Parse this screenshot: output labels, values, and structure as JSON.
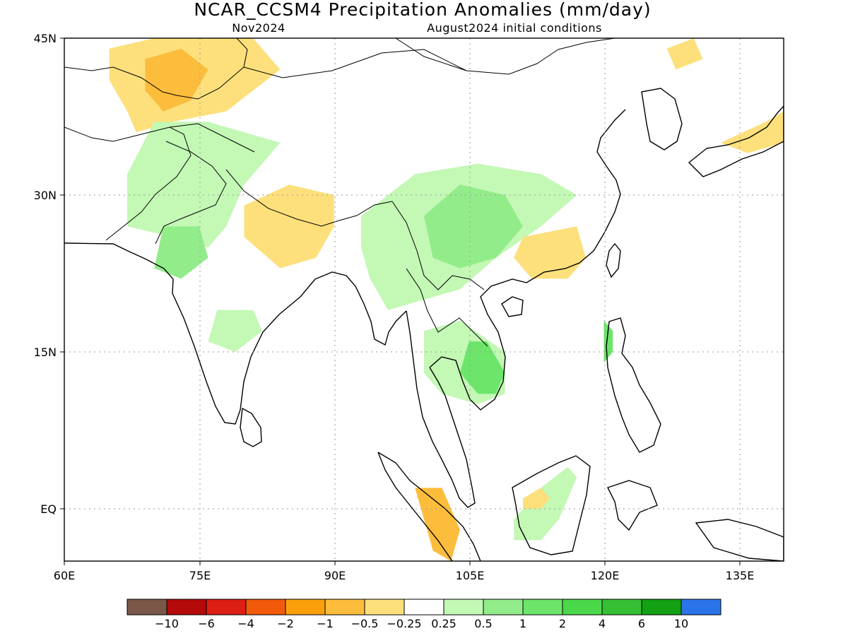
{
  "header": {
    "title": "NCAR_CCSM4 Precipitation Anomalies (mm/day)",
    "valid_month": "Nov2024",
    "init_label": "August2024 initial conditions"
  },
  "axes": {
    "lon_labels": [
      "60E",
      "75E",
      "90E",
      "105E",
      "120E",
      "135E"
    ],
    "lat_labels": [
      "45N",
      "30N",
      "15N",
      "EQ"
    ],
    "lon_range": [
      60,
      140
    ],
    "lat_range": [
      -5,
      45
    ],
    "gridlines": "dotted"
  },
  "colorbar": {
    "labels": [
      "−10",
      "−6",
      "−4",
      "−2",
      "−1",
      "−0.5",
      "−0.25",
      "0.25",
      "0.5",
      "1",
      "2",
      "4",
      "6",
      "10"
    ],
    "colors": [
      "#7a5748",
      "#b40a0a",
      "#dc1e14",
      "#f05a0a",
      "#fba00a",
      "#fcbd3c",
      "#fde07c",
      "#ffffff",
      "#c3f8b5",
      "#93ec8a",
      "#6ce56a",
      "#4ad84a",
      "#35bf35",
      "#13a013",
      "#2b73e8"
    ]
  },
  "anomaly_regions": [
    {
      "name": "dry Central Asia / Tajikistan",
      "lon_lat": [
        [
          65,
          44
        ],
        [
          70,
          45
        ],
        [
          81,
          45
        ],
        [
          84,
          42
        ],
        [
          78,
          38
        ],
        [
          72,
          37
        ],
        [
          68,
          36
        ],
        [
          67,
          38
        ],
        [
          65,
          41
        ]
      ],
      "color": "#fde07c"
    },
    {
      "name": "dry core Kyrgyzstan",
      "lon_lat": [
        [
          69,
          43
        ],
        [
          73,
          44
        ],
        [
          76,
          42
        ],
        [
          74,
          39
        ],
        [
          71,
          38
        ],
        [
          69,
          40
        ]
      ],
      "color": "#fcbd3c"
    },
    {
      "name": "wet Pakistan / NW India",
      "lon_lat": [
        [
          70,
          37
        ],
        [
          76,
          37
        ],
        [
          84,
          35
        ],
        [
          80,
          31
        ],
        [
          78,
          27
        ],
        [
          76,
          25
        ],
        [
          72,
          26
        ],
        [
          67,
          27
        ],
        [
          67,
          32
        ]
      ],
      "color": "#c3f8b5"
    },
    {
      "name": "wet central India",
      "lon_lat": [
        [
          71,
          27
        ],
        [
          75,
          27
        ],
        [
          76,
          24
        ],
        [
          73,
          22
        ],
        [
          70,
          23
        ]
      ],
      "color": "#93ec8a"
    },
    {
      "name": "dry Nepal / Ganges",
      "lon_lat": [
        [
          80,
          29
        ],
        [
          85,
          31
        ],
        [
          90,
          30
        ],
        [
          90,
          27
        ],
        [
          88,
          24
        ],
        [
          84,
          23
        ],
        [
          80,
          26
        ]
      ],
      "color": "#fde07c"
    },
    {
      "name": "wet east India",
      "lon_lat": [
        [
          77,
          19
        ],
        [
          81,
          19
        ],
        [
          82,
          17
        ],
        [
          79,
          15
        ],
        [
          76,
          16
        ]
      ],
      "color": "#c3f8b5"
    },
    {
      "name": "wet China / Myanmar / Laos",
      "lon_lat": [
        [
          93,
          28
        ],
        [
          99,
          32
        ],
        [
          106,
          33
        ],
        [
          113,
          32
        ],
        [
          117,
          30
        ],
        [
          113,
          27
        ],
        [
          108,
          24
        ],
        [
          104,
          21
        ],
        [
          100,
          20
        ],
        [
          96,
          19
        ],
        [
          94,
          22
        ],
        [
          93,
          25
        ]
      ],
      "color": "#c3f8b5"
    },
    {
      "name": "wet core Yunnan / Sichuan",
      "lon_lat": [
        [
          100,
          28
        ],
        [
          104,
          31
        ],
        [
          109,
          30
        ],
        [
          111,
          27
        ],
        [
          108,
          24
        ],
        [
          104,
          23
        ],
        [
          101,
          24
        ]
      ],
      "color": "#93ec8a"
    },
    {
      "name": "dry South China",
      "lon_lat": [
        [
          111,
          26
        ],
        [
          117,
          27
        ],
        [
          118,
          24
        ],
        [
          116,
          22
        ],
        [
          112,
          22
        ],
        [
          110,
          24
        ]
      ],
      "color": "#fde07c"
    },
    {
      "name": "wet Indochina",
      "lon_lat": [
        [
          100,
          17
        ],
        [
          104,
          18
        ],
        [
          109,
          15
        ],
        [
          109,
          11
        ],
        [
          106,
          10
        ],
        [
          102,
          11
        ],
        [
          100,
          13
        ]
      ],
      "color": "#c3f8b5"
    },
    {
      "name": "wet core Vietnam",
      "lon_lat": [
        [
          105,
          16
        ],
        [
          107,
          16
        ],
        [
          109,
          13
        ],
        [
          108,
          11
        ],
        [
          106,
          11
        ],
        [
          104,
          13
        ]
      ],
      "color": "#6ce56a"
    },
    {
      "name": "dry Sumatra",
      "lon_lat": [
        [
          99,
          2
        ],
        [
          102,
          2
        ],
        [
          104,
          -2
        ],
        [
          103,
          -5
        ],
        [
          101,
          -4
        ],
        [
          100,
          -1
        ]
      ],
      "color": "#fcbd3c"
    },
    {
      "name": "wet Borneo",
      "lon_lat": [
        [
          110,
          -1
        ],
        [
          113,
          2
        ],
        [
          116,
          4
        ],
        [
          117,
          3
        ],
        [
          115,
          -1
        ],
        [
          113,
          -3
        ],
        [
          110,
          -3
        ]
      ],
      "color": "#c3f8b5"
    },
    {
      "name": "dry north Borneo",
      "lon_lat": [
        [
          111,
          1
        ],
        [
          113,
          2
        ],
        [
          114,
          1
        ],
        [
          113,
          0
        ],
        [
          111,
          0
        ]
      ],
      "color": "#fde07c"
    },
    {
      "name": "dry Japan",
      "lon_lat": [
        [
          133,
          35
        ],
        [
          138,
          37
        ],
        [
          140,
          38
        ],
        [
          140,
          35
        ],
        [
          136,
          34
        ]
      ],
      "color": "#fde07c"
    },
    {
      "name": "dry NE Mongolia",
      "lon_lat": [
        [
          127,
          44
        ],
        [
          130,
          45
        ],
        [
          131,
          43
        ],
        [
          128,
          42
        ]
      ],
      "color": "#fde07c"
    },
    {
      "name": "wet Philippines",
      "lon_lat": [
        [
          120,
          18
        ],
        [
          121,
          17
        ],
        [
          121,
          15
        ],
        [
          120,
          14
        ],
        [
          120,
          16
        ]
      ],
      "color": "#6ce56a"
    }
  ]
}
